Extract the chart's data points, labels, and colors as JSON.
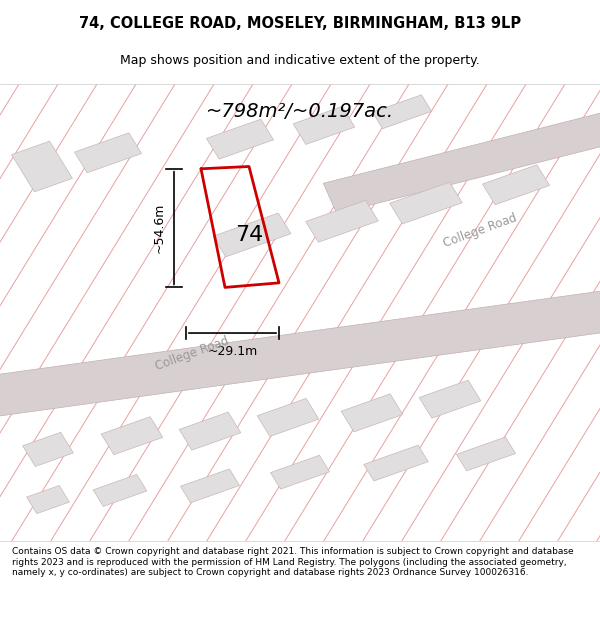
{
  "title_line1": "74, COLLEGE ROAD, MOSELEY, BIRMINGHAM, B13 9LP",
  "title_line2": "Map shows position and indicative extent of the property.",
  "area_text": "~798m²/~0.197ac.",
  "label_54": "~54.6m",
  "label_29": "~29.1m",
  "number_label": "74",
  "road_label": "College Road",
  "road_label2": "College Road",
  "footer_text": "Contains OS data © Crown copyright and database right 2021. This information is subject to Crown copyright and database rights 2023 and is reproduced with the permission of HM Land Registry. The polygons (including the associated geometry, namely x, y co-ordinates) are subject to Crown copyright and database rights 2023 Ordnance Survey 100026316.",
  "bg_color": "#ffffff",
  "map_bg": "#f8f4f4",
  "road_fill": "#e8e0e0",
  "grid_line_color": "#e8a0a0",
  "property_outline_color": "#cc0000",
  "building_fill": "#e0dede",
  "building_stroke": "#c8b8b8",
  "dim_line_color": "#000000",
  "title_color": "#000000",
  "text_color": "#000000",
  "road_text_color": "#888888"
}
